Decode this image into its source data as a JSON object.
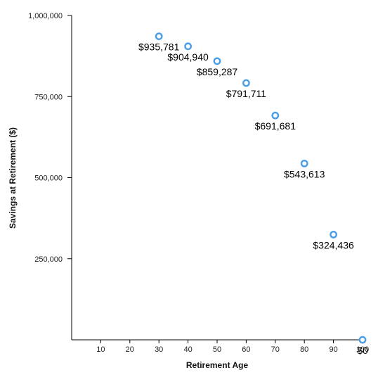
{
  "chart_data": {
    "type": "scatter",
    "xlabel": "Retirement Age",
    "ylabel": "Savings at Retirement ($)",
    "xlim": [
      0,
      100
    ],
    "ylim": [
      0,
      1000000
    ],
    "x_ticks": [
      "10",
      "20",
      "30",
      "40",
      "50",
      "60",
      "70",
      "80",
      "90",
      "100"
    ],
    "y_ticks": [
      "250,000",
      "500,000",
      "750,000",
      "1,000,000"
    ],
    "grid": false,
    "legend": "none",
    "marker": "hollow-circle",
    "color": "#4a9ee8",
    "points": [
      {
        "x": 30,
        "y": 935781,
        "label": "$935,781"
      },
      {
        "x": 40,
        "y": 904940,
        "label": "$904,940"
      },
      {
        "x": 50,
        "y": 859287,
        "label": "$859,287"
      },
      {
        "x": 60,
        "y": 791711,
        "label": "$791,711"
      },
      {
        "x": 70,
        "y": 691681,
        "label": "$691,681"
      },
      {
        "x": 80,
        "y": 543613,
        "label": "$543,613"
      },
      {
        "x": 90,
        "y": 324436,
        "label": "$324,436"
      },
      {
        "x": 100,
        "y": 0,
        "label": "$0"
      }
    ]
  }
}
